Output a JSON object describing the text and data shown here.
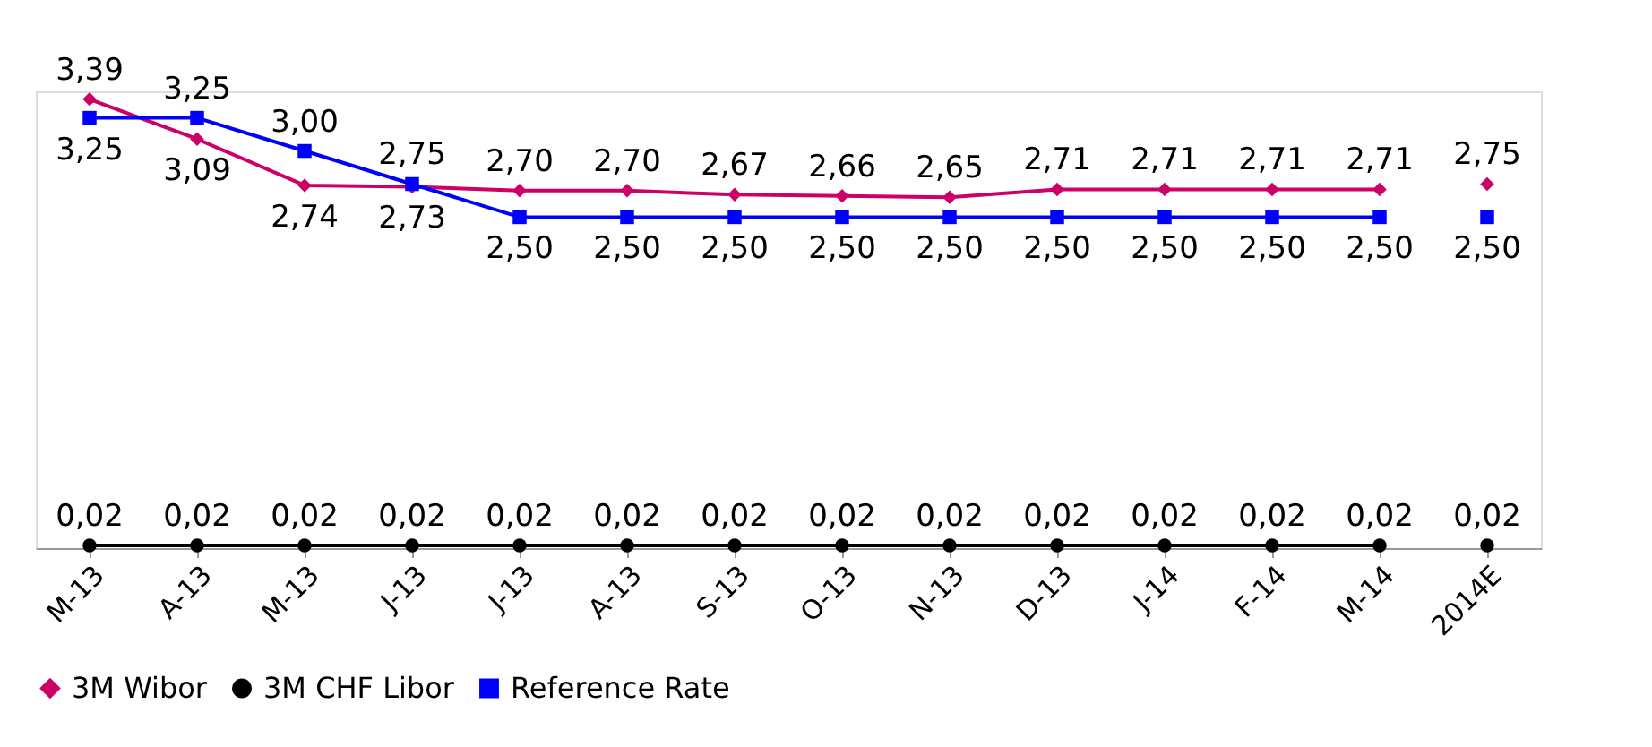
{
  "chart_data": {
    "type": "line",
    "categories": [
      "M-13",
      "A-13",
      "M-13",
      "J-13",
      "J-13",
      "A-13",
      "S-13",
      "O-13",
      "N-13",
      "D-13",
      "J-14",
      "F-14",
      "M-14",
      "2014E"
    ],
    "ylim": [
      0,
      3.45
    ],
    "tick_labels": "x",
    "grid": false,
    "legend": "bottom",
    "line_style": "solid",
    "series": [
      {
        "name": "3M Wibor",
        "color": "#cc0066",
        "marker": "diamond",
        "values": [
          3.39,
          3.09,
          2.74,
          2.73,
          2.7,
          2.7,
          2.67,
          2.66,
          2.65,
          2.71,
          2.71,
          2.71,
          2.71,
          null
        ],
        "value_labels": [
          "3,39",
          "3,09",
          "2,74",
          "2,73",
          "2,70",
          "2,70",
          "2,67",
          "2,66",
          "2,65",
          "2,71",
          "2,71",
          "2,71",
          "2,71",
          null
        ]
      },
      {
        "name": "3M CHF Libor",
        "color": "#000000",
        "marker": "circle",
        "values": [
          0.02,
          0.02,
          0.02,
          0.02,
          0.02,
          0.02,
          0.02,
          0.02,
          0.02,
          0.02,
          0.02,
          0.02,
          0.02,
          null
        ],
        "value_labels": [
          "0,02",
          "0,02",
          "0,02",
          "0,02",
          "0,02",
          "0,02",
          "0,02",
          "0,02",
          "0,02",
          "0,02",
          "0,02",
          "0,02",
          "0,02",
          null
        ]
      },
      {
        "name": "Reference Rate",
        "color": "#0000ff",
        "marker": "square",
        "values": [
          3.25,
          3.25,
          3.0,
          2.75,
          2.5,
          2.5,
          2.5,
          2.5,
          2.5,
          2.5,
          2.5,
          2.5,
          2.5,
          null
        ],
        "value_labels": [
          "3,25",
          "3,25",
          "3,00",
          "2,75",
          "2,50",
          "2,50",
          "2,50",
          "2,50",
          "2,50",
          "2,50",
          "2,50",
          "2,50",
          "2,50",
          null
        ]
      },
      {
        "type": "scatter",
        "color": "#cc0066",
        "marker": "diamond",
        "values": [
          null,
          null,
          null,
          null,
          null,
          null,
          null,
          null,
          null,
          null,
          null,
          null,
          null,
          2.75
        ],
        "value_labels": [
          null,
          null,
          null,
          null,
          null,
          null,
          null,
          null,
          null,
          null,
          null,
          null,
          null,
          "2,75"
        ]
      },
      {
        "type": "scatter",
        "color": "#000000",
        "marker": "circle",
        "values": [
          null,
          null,
          null,
          null,
          null,
          null,
          null,
          null,
          null,
          null,
          null,
          null,
          null,
          0.02
        ],
        "value_labels": [
          null,
          null,
          null,
          null,
          null,
          null,
          null,
          null,
          null,
          null,
          null,
          null,
          null,
          "0,02"
        ]
      },
      {
        "type": "scatter",
        "color": "#0000ff",
        "marker": "square",
        "values": [
          null,
          null,
          null,
          null,
          null,
          null,
          null,
          null,
          null,
          null,
          null,
          null,
          null,
          2.5
        ],
        "value_labels": [
          null,
          null,
          null,
          null,
          null,
          null,
          null,
          null,
          null,
          null,
          null,
          null,
          null,
          "2,50"
        ]
      }
    ]
  }
}
